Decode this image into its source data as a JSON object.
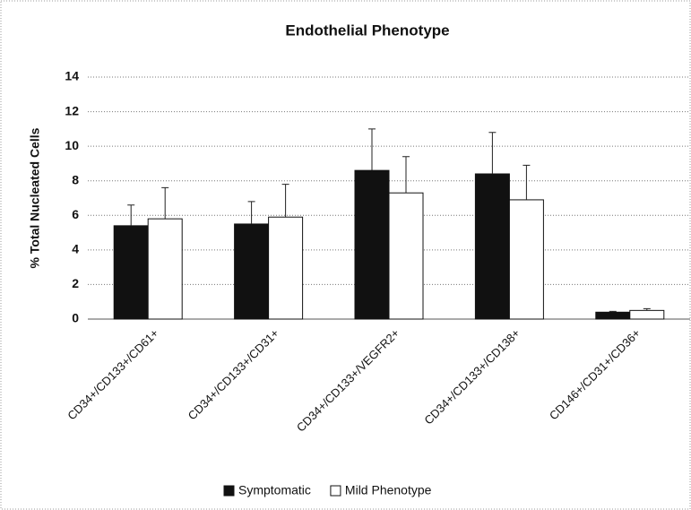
{
  "chart_data": {
    "type": "bar",
    "title": "Endothelial Phenotype",
    "y_label": "% Total Nucleated Cells",
    "categories": [
      "CD34+/CD133+/CD61+",
      "CD34+/CD133+/CD31+",
      "CD34+/CD133+/VEGFR2+",
      "CD34+/CD133+/CD138+",
      "CD146+/CD31+/CD36+"
    ],
    "series": [
      {
        "name": "Symptomatic",
        "color": "#111111",
        "values": [
          5.4,
          5.5,
          8.6,
          8.4,
          0.4
        ],
        "errors": [
          1.2,
          1.3,
          2.4,
          2.4,
          0.05
        ]
      },
      {
        "name": "Mild Phenotype",
        "color": "#ffffff",
        "values": [
          5.8,
          5.9,
          7.3,
          6.9,
          0.5
        ],
        "errors": [
          1.8,
          1.9,
          2.1,
          2.0,
          0.1
        ]
      }
    ],
    "ylim": [
      0,
      14
    ],
    "yticks": [
      0,
      2,
      4,
      6,
      8,
      10,
      12,
      14
    ],
    "grid": true,
    "legend": "bottom"
  }
}
